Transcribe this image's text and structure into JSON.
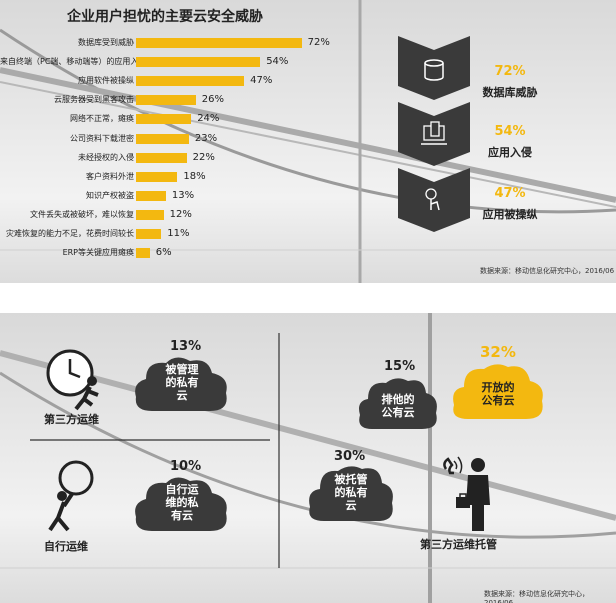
{
  "chart_data": {
    "type": "bar",
    "title": "企业用户担忧的主要云安全威胁",
    "categories": [
      "数据库受到威胁",
      "来自终端（PC端、移动端等）的应用入侵",
      "应用软件被操纵",
      "云服务器受到黑客攻击",
      "网络不正常，瘫痪",
      "公司资料下载泄密",
      "未经授权的入侵",
      "客户资料外泄",
      "知识产权被盗",
      "文件丢失或被破坏，难以恢复",
      "灾难恢复的能力不足，花费时间较长",
      "ERP等关键应用瘫痪"
    ],
    "values": [
      72,
      54,
      47,
      26,
      24,
      23,
      22,
      18,
      13,
      12,
      11,
      6
    ],
    "value_labels": [
      "72%",
      "54%",
      "47%",
      "26%",
      "24%",
      "23%",
      "22%",
      "18%",
      "13%",
      "12%",
      "11%",
      "6%"
    ],
    "xlim": [
      0,
      100
    ],
    "bar_color": "#f3b810"
  },
  "highlights": [
    {
      "value": "72%",
      "label": "数据库威胁",
      "icon": "database-icon"
    },
    {
      "value": "54%",
      "label": "应用入侵",
      "icon": "devices-icon"
    },
    {
      "value": "47%",
      "label": "应用被操纵",
      "icon": "touch-icon"
    }
  ],
  "source_top": "数据来源：移动信息化研究中心，2016/06",
  "quadrants": {
    "third_party_ops": {
      "label": "第三方运维",
      "icon": "clock-runner-icon",
      "pct": "13%",
      "cloud_lines": [
        "被管理",
        "的私有",
        "云"
      ]
    },
    "self_ops": {
      "label": "自行运维",
      "icon": "magnifier-person-icon",
      "pct": "10%",
      "cloud_lines": [
        "自行运",
        "维的私",
        "有云"
      ]
    },
    "hosting": {
      "label": "第三方运维托管",
      "icon": "businessman-icon",
      "exclusive": {
        "pct": "15%",
        "cloud_lines": [
          "排他的",
          "公有云"
        ]
      },
      "open": {
        "pct": "32%",
        "cloud_lines": [
          "开放的",
          "公有云"
        ]
      },
      "hosted": {
        "pct": "30%",
        "cloud_lines": [
          "被托管",
          "的私有",
          "云"
        ]
      }
    }
  },
  "source_bottom": "数据来源：移动信息化研究中心，2016/06",
  "colors": {
    "accent": "#f3b810",
    "dark": "#333333",
    "cloud_dark": "#3a3a3a"
  }
}
